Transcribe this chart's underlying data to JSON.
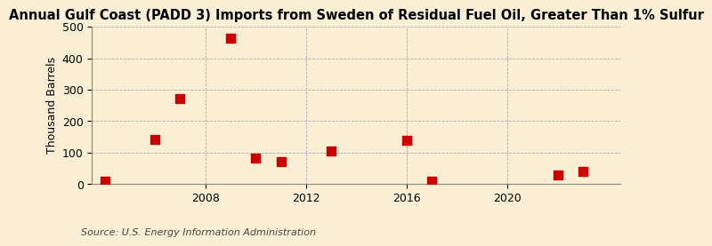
{
  "title": "Annual Gulf Coast (PADD 3) Imports from Sweden of Residual Fuel Oil, Greater Than 1% Sulfur",
  "ylabel": "Thousand Barrels",
  "source": "Source: U.S. Energy Information Administration",
  "background_color": "#faefd4",
  "point_color": "#cc0000",
  "scatter_x": [
    2004,
    2006,
    2007,
    2009,
    2010,
    2011,
    2013,
    2016,
    2017,
    2022,
    2023
  ],
  "scatter_y": [
    8,
    143,
    271,
    463,
    82,
    72,
    104,
    138,
    8,
    30,
    40
  ],
  "xlim": [
    2003.5,
    2024.5
  ],
  "ylim": [
    0,
    500
  ],
  "yticks": [
    0,
    100,
    200,
    300,
    400,
    500
  ],
  "xticks": [
    2008,
    2012,
    2016,
    2020
  ],
  "marker_size": 55,
  "title_fontsize": 10.5,
  "axis_fontsize": 9,
  "source_fontsize": 8
}
